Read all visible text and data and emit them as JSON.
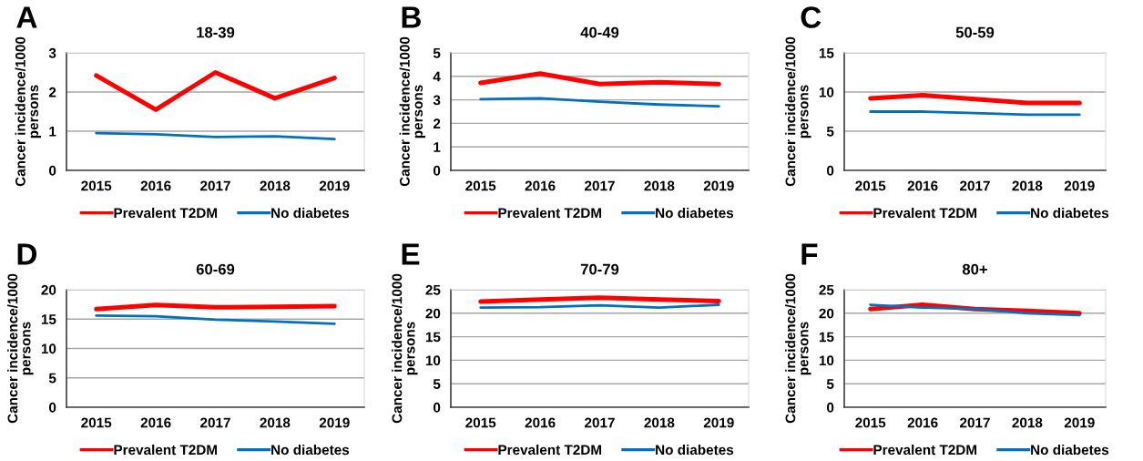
{
  "chart_data": [
    {
      "type": "line",
      "title": "18-39",
      "ylabel": "Cancer incidence/1000 persons",
      "annotations": [
        "A"
      ],
      "categories": [
        "2015",
        "2016",
        "2017",
        "2018",
        "2019"
      ],
      "ylim": [
        0,
        3
      ],
      "yticks": [
        0,
        1,
        2,
        3
      ],
      "grid": "y",
      "legend": "bottom",
      "series": [
        {
          "name": "Prevalent T2DM",
          "color": "#ff0000",
          "values": [
            2.42,
            1.55,
            2.5,
            1.84,
            2.36
          ]
        },
        {
          "name": "No diabetes",
          "color": "#0070c0",
          "values": [
            0.95,
            0.92,
            0.85,
            0.87,
            0.8
          ]
        }
      ]
    },
    {
      "type": "line",
      "title": "40-49",
      "ylabel": "Cancer incidence/1000 persons",
      "annotations": [
        "B"
      ],
      "categories": [
        "2015",
        "2016",
        "2017",
        "2018",
        "2019"
      ],
      "ylim": [
        0,
        5
      ],
      "yticks": [
        0,
        1,
        2,
        3,
        4,
        5
      ],
      "grid": "y",
      "legend": "bottom",
      "series": [
        {
          "name": "Prevalent T2DM",
          "color": "#ff0000",
          "values": [
            3.72,
            4.12,
            3.67,
            3.75,
            3.67
          ]
        },
        {
          "name": "No diabetes",
          "color": "#0070c0",
          "values": [
            3.03,
            3.07,
            2.92,
            2.8,
            2.73
          ]
        }
      ]
    },
    {
      "type": "line",
      "title": "50-59",
      "ylabel": "Cancer incidence/1000 persons",
      "annotations": [
        "C"
      ],
      "categories": [
        "2015",
        "2016",
        "2017",
        "2018",
        "2019"
      ],
      "ylim": [
        0,
        15
      ],
      "yticks": [
        0,
        5,
        10,
        15
      ],
      "grid": "y",
      "legend": "bottom",
      "series": [
        {
          "name": "Prevalent T2DM",
          "color": "#ff0000",
          "values": [
            9.2,
            9.6,
            9.1,
            8.6,
            8.6
          ]
        },
        {
          "name": "No diabetes",
          "color": "#0070c0",
          "values": [
            7.5,
            7.5,
            7.3,
            7.1,
            7.1
          ]
        }
      ]
    },
    {
      "type": "line",
      "title": "60-69",
      "ylabel": "Cancer incidence/1000 persons",
      "annotations": [
        "D"
      ],
      "categories": [
        "2015",
        "2016",
        "2017",
        "2018",
        "2019"
      ],
      "ylim": [
        0,
        20
      ],
      "yticks": [
        0,
        5,
        10,
        15,
        20
      ],
      "grid": "y",
      "legend": "bottom",
      "series": [
        {
          "name": "Prevalent T2DM",
          "color": "#ff0000",
          "values": [
            16.7,
            17.4,
            17.0,
            17.1,
            17.2
          ]
        },
        {
          "name": "No diabetes",
          "color": "#0070c0",
          "values": [
            15.6,
            15.5,
            14.9,
            14.6,
            14.2
          ]
        }
      ]
    },
    {
      "type": "line",
      "title": "70-79",
      "ylabel": "Cancer incidence/1000 persons",
      "annotations": [
        "E"
      ],
      "categories": [
        "2015",
        "2016",
        "2017",
        "2018",
        "2019"
      ],
      "ylim": [
        0,
        25
      ],
      "yticks": [
        0,
        5,
        10,
        15,
        20,
        25
      ],
      "grid": "y",
      "legend": "bottom",
      "series": [
        {
          "name": "Prevalent T2DM",
          "color": "#ff0000",
          "values": [
            22.5,
            22.9,
            23.3,
            22.9,
            22.6
          ]
        },
        {
          "name": "No diabetes",
          "color": "#0070c0",
          "values": [
            21.2,
            21.3,
            21.7,
            21.2,
            21.8
          ]
        }
      ]
    },
    {
      "type": "line",
      "title": "80+",
      "ylabel": "Cancer incidence/1000 persons",
      "annotations": [
        "F"
      ],
      "categories": [
        "2015",
        "2016",
        "2017",
        "2018",
        "2019"
      ],
      "ylim": [
        0,
        25
      ],
      "yticks": [
        0,
        5,
        10,
        15,
        20,
        25
      ],
      "grid": "y",
      "legend": "bottom",
      "series": [
        {
          "name": "Prevalent T2DM",
          "color": "#ff0000",
          "values": [
            20.9,
            21.8,
            20.9,
            20.5,
            20.0
          ]
        },
        {
          "name": "No diabetes",
          "color": "#0070c0",
          "values": [
            21.8,
            21.2,
            20.9,
            20.0,
            19.6
          ]
        }
      ]
    }
  ]
}
